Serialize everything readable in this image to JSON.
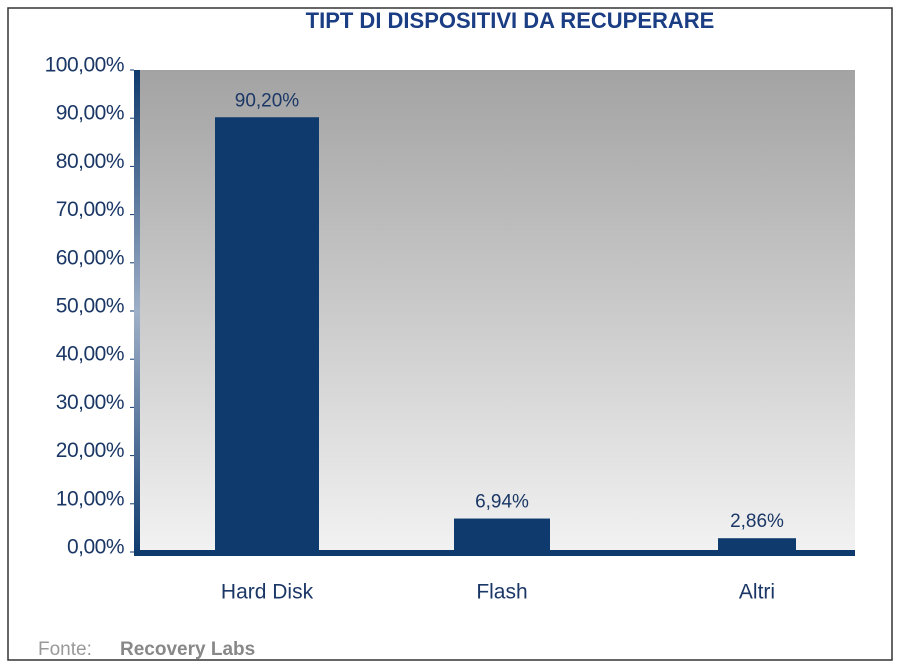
{
  "chart_data": {
    "type": "bar",
    "title": "TIPT DI DISPOSITIVI DA RECUPERARE",
    "categories": [
      "Hard Disk",
      "Flash",
      "Altri"
    ],
    "values": [
      90.2,
      6.94,
      2.86
    ],
    "value_labels": [
      "90,20%",
      "6,94%",
      "2,86%"
    ],
    "color": "#0f3a6e",
    "ylim": [
      0,
      100
    ],
    "yticks": [
      {
        "value": 0,
        "label": "0,00%"
      },
      {
        "value": 10,
        "label": "10,00%"
      },
      {
        "value": 20,
        "label": "20,00%"
      },
      {
        "value": 30,
        "label": "30,00%"
      },
      {
        "value": 40,
        "label": "40,00%"
      },
      {
        "value": 50,
        "label": "50,00%"
      },
      {
        "value": 60,
        "label": "60,00%"
      },
      {
        "value": 70,
        "label": "70,00%"
      },
      {
        "value": 80,
        "label": "80,00%"
      },
      {
        "value": 90,
        "label": "90,00%"
      },
      {
        "value": 100,
        "label": "100,00%"
      }
    ],
    "source_label": "Fonte:",
    "source": "Recovery Labs"
  }
}
